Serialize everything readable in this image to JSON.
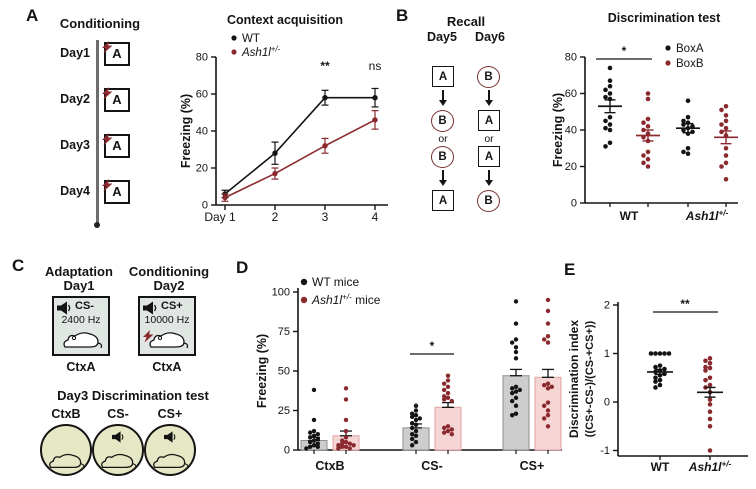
{
  "figure": {
    "colors": {
      "black": "#141414",
      "darkred": "#8b2a2e",
      "wt_bar_fill": "#cdcdcd",
      "ash_bar_fill": "#f6d5d5",
      "context_box_fill": "#e0e6e2",
      "test_circle_fill": "#e6e7c4"
    }
  },
  "panels": {
    "a": {
      "label": "A",
      "conditioning": {
        "title": "Conditioning",
        "days": [
          "Day1",
          "Day2",
          "Day3",
          "Day4"
        ],
        "box_letter": "A"
      }
    },
    "b": {
      "label": "B",
      "recall": {
        "title": "Recall",
        "day_labels": [
          "Day5",
          "Day6"
        ],
        "or_label": "or",
        "sequences": [
          {
            "steps": [
              {
                "shape": "square",
                "letter": "A"
              },
              {
                "shape": "circle",
                "letter": "B"
              },
              {
                "shape": "circle",
                "letter": "B"
              },
              {
                "shape": "square",
                "letter": "A"
              }
            ]
          },
          {
            "steps": [
              {
                "shape": "circle",
                "letter": "B"
              },
              {
                "shape": "square",
                "letter": "A"
              },
              {
                "shape": "square",
                "letter": "A"
              },
              {
                "shape": "circle",
                "letter": "B"
              }
            ]
          }
        ]
      }
    },
    "c": {
      "label": "C",
      "phase1_title": "Adaptation",
      "phase1_day": "Day1",
      "phase2_title": "Conditioning",
      "phase2_day": "Day2",
      "box1": {
        "cs": "CS-",
        "freq": "2400 Hz",
        "context": "CtxA",
        "shock": false
      },
      "box2": {
        "cs": "CS+",
        "freq": "10000 Hz",
        "context": "CtxA",
        "shock": true
      },
      "day3_title": "Day3 Discrimination test",
      "circles": [
        {
          "label": "CtxB",
          "speaker": false
        },
        {
          "label": "CS-",
          "speaker": true
        },
        {
          "label": "CS+",
          "speaker": true
        }
      ]
    },
    "d": {
      "label": "D"
    },
    "e": {
      "label": "E"
    }
  },
  "chart_data": [
    {
      "id": "context_acquisition",
      "type": "line",
      "title": "Context acquisition",
      "xlabel": "",
      "ylabel": "Freezing (%)",
      "ylim": [
        0,
        80
      ],
      "yticks": [
        0,
        20,
        40,
        60,
        80
      ],
      "x": [
        1,
        2,
        3,
        4
      ],
      "xtick_labels": [
        "Day 1",
        "2",
        "3",
        "4"
      ],
      "legend_position": "top-left",
      "series": [
        {
          "name": "WT",
          "label": {
            "main": "WT",
            "sup": "",
            "suffix": "",
            "italic": false
          },
          "color": "#141414",
          "values": [
            6,
            28,
            58,
            58
          ],
          "sem": [
            2,
            6,
            4,
            5
          ]
        },
        {
          "name": "Ash1l+/-",
          "label": {
            "main": "Ash1l",
            "sup": "+/-",
            "suffix": "",
            "italic": true
          },
          "color": "#8b2a2e",
          "values": [
            4,
            17,
            32,
            46
          ],
          "sem": [
            2,
            3,
            4,
            5
          ]
        }
      ],
      "annotations": [
        {
          "x": 3,
          "text": "**"
        },
        {
          "x": 4,
          "text": "ns"
        }
      ]
    },
    {
      "id": "discrimination_test",
      "type": "scatter",
      "title": "Discrimination test",
      "ylabel": "Freezing (%)",
      "ylim": [
        0,
        80
      ],
      "yticks": [
        0,
        20,
        40,
        60,
        80
      ],
      "legend_position": "top-right",
      "groups": [
        {
          "main": "WT",
          "sup": "",
          "italic": false
        },
        {
          "main": "Ash1l",
          "sup": "+/-",
          "italic": true
        }
      ],
      "series": [
        {
          "name": "BoxA",
          "color": "#141414",
          "data": [
            {
              "group": "WT",
              "values": [
                74,
                67,
                64,
                62,
                60,
                58,
                57,
                47,
                45,
                43,
                41,
                40,
                33,
                31
              ],
              "mean": 53,
              "sem": 3.5
            },
            {
              "group": "Ash1l+/-",
              "values": [
                56,
                47,
                45,
                44,
                43,
                42,
                41,
                40,
                39,
                38,
                30,
                28,
                27
              ],
              "mean": 41,
              "sem": 2.5
            }
          ]
        },
        {
          "name": "BoxB",
          "color": "#8b2a2e",
          "data": [
            {
              "group": "WT",
              "values": [
                60,
                57,
                46,
                44,
                42,
                40,
                38,
                36,
                34,
                28,
                26,
                24,
                22,
                20
              ],
              "mean": 37,
              "sem": 3
            },
            {
              "group": "Ash1l+/-",
              "values": [
                53,
                51,
                48,
                45,
                43,
                41,
                39,
                37,
                30,
                26,
                22,
                20,
                13
              ],
              "mean": 36,
              "sem": 3.5
            }
          ]
        }
      ],
      "annotations": [
        {
          "between": "WT",
          "text": "*"
        }
      ]
    },
    {
      "id": "cue_freezing",
      "type": "bar",
      "title": "",
      "ylabel": "Freezing (%)",
      "ylim": [
        0,
        100
      ],
      "yticks": [
        0,
        25,
        50,
        75,
        100
      ],
      "categories": [
        "CtxB",
        "CS-",
        "CS+"
      ],
      "legend_position": "top-left",
      "series": [
        {
          "name": "WT mice",
          "label": {
            "main": "WT",
            "sup": "",
            "suffix": " mice",
            "italic": false
          },
          "color": "#141414",
          "bar_fill": "#cdcdcd",
          "bar_stroke": "#8f8f8f",
          "values": [
            6,
            14,
            47
          ],
          "sem": [
            2,
            2.5,
            4
          ],
          "points": [
            [
              38,
              19,
              12,
              11,
              10,
              9,
              8,
              7,
              6,
              5,
              4,
              3,
              2,
              2,
              1
            ],
            [
              28,
              25,
              23,
              22,
              21,
              20,
              19,
              17,
              16,
              14,
              12,
              10,
              9,
              7,
              5,
              3
            ],
            [
              94,
              80,
              70,
              68,
              65,
              62,
              58,
              40,
              39,
              38,
              37,
              36,
              33,
              31,
              28,
              23,
              22
            ]
          ]
        },
        {
          "name": "Ash1l+/- mice",
          "label": {
            "main": "Ash1l",
            "sup": "+/-",
            "suffix": " mice",
            "italic": true
          },
          "color": "#8b2a2e",
          "bar_fill": "#f6d5d5",
          "bar_stroke": "#dfa3a3",
          "values": [
            9,
            27,
            46
          ],
          "sem": [
            3,
            3,
            5
          ],
          "points": [
            [
              39,
              32,
              19,
              12,
              8,
              6,
              5,
              4,
              4,
              3,
              3,
              2,
              2,
              1,
              1
            ],
            [
              47,
              44,
              42,
              40,
              38,
              36,
              34,
              33,
              32,
              31,
              15,
              14,
              13,
              12,
              11,
              10
            ],
            [
              95,
              88,
              80,
              72,
              70,
              68,
              42,
              41,
              40,
              39,
              30,
              28,
              25,
              22,
              20,
              15
            ]
          ]
        }
      ],
      "annotations": [
        {
          "category": "CS-",
          "text": "*"
        }
      ]
    },
    {
      "id": "discrimination_index",
      "type": "scatter",
      "title": "",
      "ylabel_line1": "Discrimination index",
      "ylabel_line2": "((CS+-CS-)/(CS-+CS+))",
      "ylim": [
        -1.4,
        2
      ],
      "yticks": [
        2,
        1,
        0,
        -1
      ],
      "groups": [
        {
          "main": "WT",
          "sup": "",
          "italic": false
        },
        {
          "main": "Ash1l",
          "sup": "+/-",
          "italic": true
        }
      ],
      "series": [
        {
          "name": "WT",
          "color": "#141414",
          "data": [
            {
              "group": "WT",
              "values": [
                1.0,
                1.0,
                1.0,
                1.0,
                1.0,
                0.75,
                0.72,
                0.68,
                0.65,
                0.62,
                0.58,
                0.55,
                0.5,
                0.45,
                0.42,
                0.35,
                0.3
              ],
              "mean": 0.62,
              "sem": 0.05
            }
          ]
        },
        {
          "name": "Ash1l+/-",
          "color": "#8b2a2e",
          "data": [
            {
              "group": "Ash1l+/-",
              "values": [
                0.9,
                0.85,
                0.8,
                0.72,
                0.7,
                0.65,
                0.5,
                0.45,
                0.35,
                0.3,
                0.2,
                0.05,
                -0.05,
                -0.2,
                -0.35,
                -0.5,
                -1.0
              ],
              "mean": 0.2,
              "sem": 0.1
            }
          ]
        }
      ],
      "annotations": [
        {
          "between": "both",
          "text": "**"
        }
      ]
    }
  ]
}
